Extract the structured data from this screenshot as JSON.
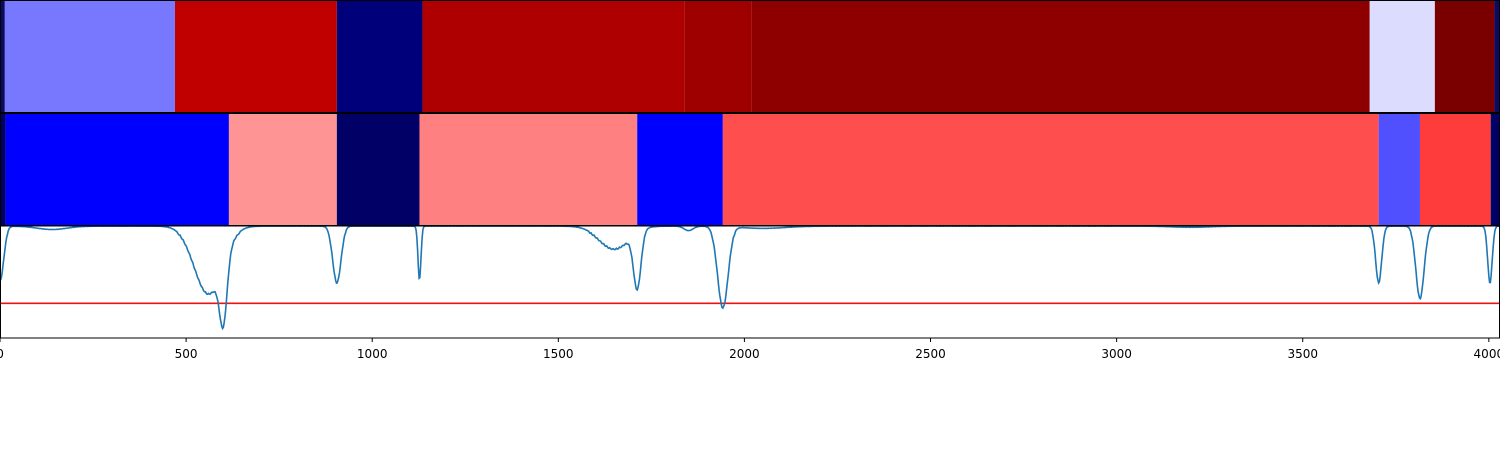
{
  "chart_data": {
    "type": "heatmap",
    "title": "",
    "xlabel": "",
    "ylabel": "",
    "xlim": [
      0,
      4030
    ],
    "grid": false,
    "x_ticks": [
      {
        "value": 0,
        "label": "0"
      },
      {
        "value": 500,
        "label": "500"
      },
      {
        "value": 1000,
        "label": "1000"
      },
      {
        "value": 1500,
        "label": "1500"
      },
      {
        "value": 2000,
        "label": "2000"
      },
      {
        "value": 2500,
        "label": "2500"
      },
      {
        "value": 3000,
        "label": "3000"
      },
      {
        "value": 3500,
        "label": "3500"
      },
      {
        "value": 4000,
        "label": "4000"
      }
    ],
    "panels": [
      {
        "type": "segment-heatmap",
        "segments": [
          {
            "start": 0,
            "end": 13,
            "color": "#0a0a60"
          },
          {
            "start": 13,
            "end": 470,
            "color": "#7878ff"
          },
          {
            "start": 470,
            "end": 905,
            "color": "#c00000"
          },
          {
            "start": 905,
            "end": 1135,
            "color": "#00007a"
          },
          {
            "start": 1135,
            "end": 1840,
            "color": "#ae0000"
          },
          {
            "start": 1840,
            "end": 2020,
            "color": "#9e0000"
          },
          {
            "start": 2020,
            "end": 3680,
            "color": "#8e0000"
          },
          {
            "start": 3680,
            "end": 3855,
            "color": "#dcdcff"
          },
          {
            "start": 3855,
            "end": 4015,
            "color": "#7a0000"
          },
          {
            "start": 4015,
            "end": 4030,
            "color": "#0a0a60"
          }
        ]
      },
      {
        "type": "segment-heatmap",
        "segments": [
          {
            "start": 0,
            "end": 15,
            "color": "#000066"
          },
          {
            "start": 15,
            "end": 615,
            "color": "#0000ff"
          },
          {
            "start": 615,
            "end": 905,
            "color": "#ff9494"
          },
          {
            "start": 905,
            "end": 1127,
            "color": "#000066"
          },
          {
            "start": 1127,
            "end": 1712,
            "color": "#ff8080"
          },
          {
            "start": 1712,
            "end": 1942,
            "color": "#0000ff"
          },
          {
            "start": 1942,
            "end": 3704,
            "color": "#ff4e4e"
          },
          {
            "start": 3704,
            "end": 3815,
            "color": "#5050ff"
          },
          {
            "start": 3815,
            "end": 4005,
            "color": "#ff3c3c"
          },
          {
            "start": 4005,
            "end": 4030,
            "color": "#000066"
          }
        ]
      },
      {
        "type": "line",
        "ylim": [
          0,
          1.0
        ],
        "threshold": 0.31,
        "threshold_color": "#ee1111",
        "line_color": "#1f77b4",
        "dips": [
          {
            "center": 0,
            "depth": 0.48,
            "width": 10
          },
          {
            "center": 140,
            "depth": 0.03,
            "width": 40
          },
          {
            "center": 560,
            "depth": 0.6,
            "width": 38
          },
          {
            "center": 600,
            "depth": 0.55,
            "width": 10
          },
          {
            "center": 905,
            "depth": 0.5,
            "width": 11
          },
          {
            "center": 1127,
            "depth": 0.47,
            "width": 4
          },
          {
            "center": 1650,
            "depth": 0.2,
            "width": 40
          },
          {
            "center": 1712,
            "depth": 0.5,
            "width": 10
          },
          {
            "center": 1850,
            "depth": 0.04,
            "width": 12
          },
          {
            "center": 1942,
            "depth": 0.72,
            "width": 14
          },
          {
            "center": 2050,
            "depth": 0.02,
            "width": 60
          },
          {
            "center": 3200,
            "depth": 0.01,
            "width": 50
          },
          {
            "center": 3704,
            "depth": 0.5,
            "width": 8
          },
          {
            "center": 3815,
            "depth": 0.64,
            "width": 11
          },
          {
            "center": 4003,
            "depth": 0.5,
            "width": 6
          }
        ]
      }
    ]
  }
}
